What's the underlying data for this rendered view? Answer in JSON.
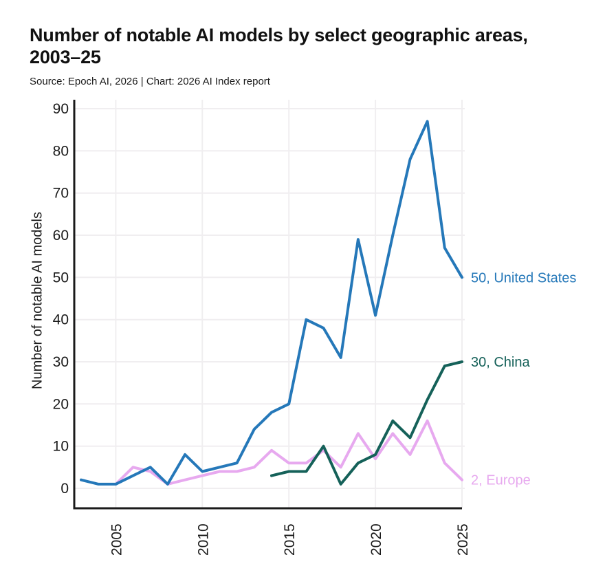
{
  "header": {
    "title": "Number of notable AI models by select geographic areas, 2003–25",
    "source": "Source: Epoch AI, 2026 | Chart: 2026 AI Index report"
  },
  "chart_data": {
    "type": "line",
    "title": "Number of notable AI models by select geographic areas, 2003–25",
    "source": "Source: Epoch AI, 2026 | Chart: 2026 AI Index report",
    "xlabel": "",
    "ylabel": "Number of notable AI models",
    "ylim": [
      0,
      90
    ],
    "yticks": [
      0,
      10,
      20,
      30,
      40,
      50,
      60,
      70,
      80,
      90
    ],
    "xticks": [
      2005,
      2010,
      2015,
      2020,
      2025
    ],
    "x_range": [
      2003,
      2025
    ],
    "grid": true,
    "legend_position": "end-of-line-labels",
    "axis_color": "#1a1a1a",
    "grid_color": "#f0eef0",
    "series": [
      {
        "name": "United States",
        "color": "#2578b9",
        "end_label": "50, United States",
        "start_year": 2003,
        "values": [
          2,
          1,
          1,
          3,
          5,
          1,
          8,
          4,
          5,
          6,
          14,
          18,
          20,
          40,
          38,
          31,
          59,
          41,
          60,
          78,
          87,
          57,
          50
        ]
      },
      {
        "name": "China",
        "color": "#156159",
        "end_label": "30, China",
        "start_year": 2014,
        "values": [
          3,
          4,
          4,
          10,
          1,
          6,
          8,
          16,
          12,
          21,
          29,
          30
        ]
      },
      {
        "name": "Europe",
        "color": "#e7a9ef",
        "end_label": "2, Europe",
        "start_year": 2005,
        "values": [
          1,
          5,
          4,
          1,
          2,
          3,
          4,
          4,
          5,
          9,
          6,
          6,
          9,
          5,
          13,
          7,
          13,
          8,
          16,
          6,
          2
        ]
      }
    ]
  }
}
